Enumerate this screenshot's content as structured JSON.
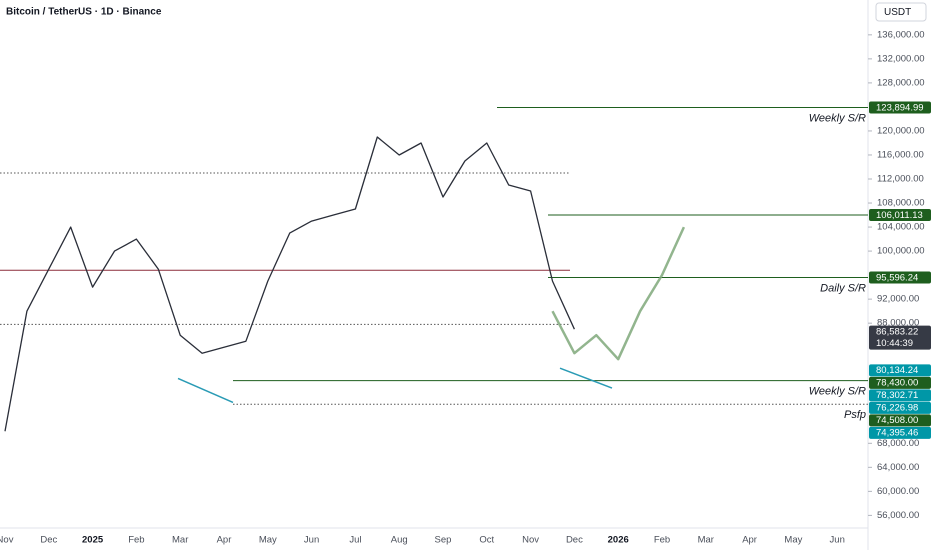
{
  "chart_data": {
    "type": "line",
    "title": "Bitcoin / TetherUS · 1D · Binance",
    "currency": "USDT",
    "categories": [
      "Nov",
      null,
      "Dec",
      null,
      "2025",
      null,
      "Feb",
      null,
      "Mar",
      null,
      "Apr",
      null,
      "May",
      null,
      "Jun",
      null,
      "Jul",
      null,
      "Aug",
      null,
      "Sep",
      null,
      "Oct",
      null,
      "Nov",
      null,
      "Dec",
      null,
      "2026",
      null,
      "Feb",
      null,
      "Mar",
      null,
      "Apr",
      null,
      "May",
      null,
      "Jun",
      null
    ],
    "series": [
      {
        "color": "#2a2e39",
        "values": [
          70000,
          90000,
          97000,
          104000,
          94000,
          100000,
          102000,
          97000,
          86000,
          83000,
          84000,
          85000,
          95000,
          103000,
          105000,
          106000,
          107000,
          119000,
          116000,
          118000,
          109000,
          115000,
          118000,
          111000,
          110000,
          95000,
          87000,
          null,
          null,
          null,
          null,
          null,
          null,
          null,
          null,
          null,
          null,
          null,
          null,
          null
        ]
      },
      {
        "color": "#7fa87a",
        "values": [
          null,
          null,
          null,
          null,
          null,
          null,
          null,
          null,
          null,
          null,
          null,
          null,
          null,
          null,
          null,
          null,
          null,
          null,
          null,
          null,
          null,
          null,
          null,
          null,
          null,
          90000,
          83000,
          86000,
          82000,
          90000,
          96000,
          104000,
          null,
          null,
          null,
          null,
          null,
          null,
          null,
          null
        ]
      }
    ],
    "ylim": [
      54400,
      141800
    ],
    "yticks": [
      {
        "value": 56000,
        "label": "56,000.00"
      },
      {
        "value": 60000,
        "label": "60,000.00"
      },
      {
        "value": 64000,
        "label": "64,000.00"
      },
      {
        "value": 68000,
        "label": "68,000.00"
      },
      {
        "value": 88000,
        "label": "88,000.00"
      },
      {
        "value": 92000,
        "label": "92,000.00"
      },
      {
        "value": 100000,
        "label": "100,000.00"
      },
      {
        "value": 104000,
        "label": "104,000.00"
      },
      {
        "value": 108000,
        "label": "108,000.00"
      },
      {
        "value": 112000,
        "label": "112,000.00"
      },
      {
        "value": 116000,
        "label": "116,000.00"
      },
      {
        "value": 120000,
        "label": "120,000.00"
      },
      {
        "value": 128000,
        "label": "128,000.00"
      },
      {
        "value": 132000,
        "label": "132,000.00"
      },
      {
        "value": 136000,
        "label": "136,000.00"
      }
    ],
    "levels": [
      {
        "value": 123894.99,
        "label": "123,894.99",
        "note": "Weekly S/R",
        "color": "#1e5e1e"
      },
      {
        "value": 106011.13,
        "label": "106,011.13",
        "color": "#1e5e1e"
      },
      {
        "value": 95596.24,
        "label": "95,596.24",
        "note": "Daily S/R",
        "color": "#1e5e1e"
      },
      {
        "value": 78430,
        "label": "78,430.00",
        "note": "Weekly S/R",
        "color": "#1e5e1e"
      },
      {
        "value": 74508,
        "label": "74,508.00",
        "note": "Psfp",
        "color": "#1e5e1e"
      }
    ],
    "last_price": {
      "value": 86583.22,
      "label": "86,583.22",
      "countdown": "10:44:39",
      "color": "#363a45"
    },
    "price_marks": [
      {
        "value": 80134.24,
        "label": "80,134.24",
        "color": "#0097a7"
      },
      {
        "value": 78302.71,
        "label": "78,302.71",
        "color": "#0097a7"
      },
      {
        "value": 76226.98,
        "label": "76,226.98",
        "color": "#0097a7"
      },
      {
        "value": 74395.46,
        "label": "74,395.46",
        "color": "#0097a7"
      }
    ],
    "reference_lines": [
      {
        "value": 96800,
        "color": "#8b2d3a",
        "style": "solid"
      },
      {
        "value": 113000,
        "color": "#555",
        "style": "dotted"
      },
      {
        "value": 87800,
        "color": "#555",
        "style": "dotted"
      }
    ],
    "trendlines": [
      {
        "color": "#2a9bb5",
        "values": [
          78800,
          74800
        ]
      },
      {
        "color": "#2a9bb5",
        "values": [
          80500,
          77200
        ]
      }
    ]
  }
}
